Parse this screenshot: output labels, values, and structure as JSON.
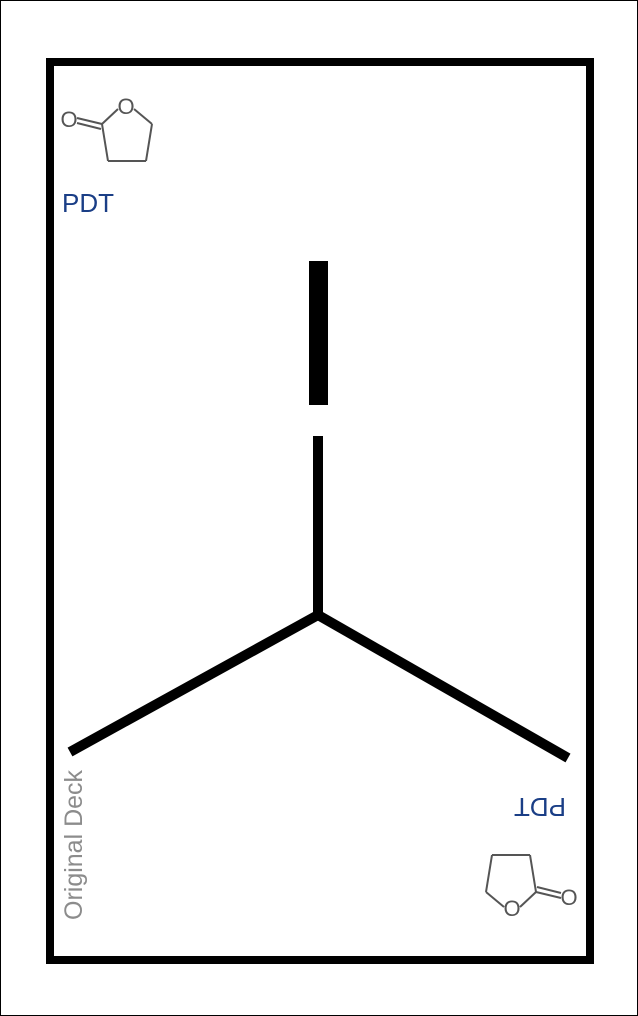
{
  "card": {
    "compound_code": "PDT",
    "deck_name": "Original Deck",
    "colors": {
      "frame": "#000000",
      "label": "#1a3e86",
      "deck_text": "#8c8c8c",
      "structure": "#555555"
    },
    "icons": {
      "top_left": "lactone-ring-icon",
      "bottom_right": "lactone-ring-icon",
      "center": "molecular-bond-skeleton-icon"
    }
  }
}
